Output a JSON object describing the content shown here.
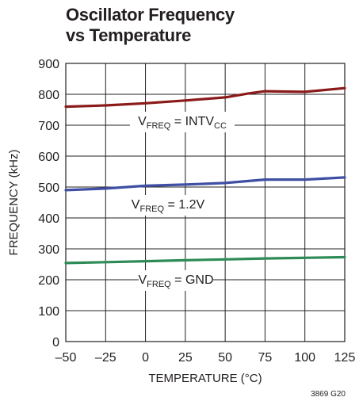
{
  "title_line1": "Oscillator Frequency",
  "title_line2": "vs Temperature",
  "figure_code": "3869 G20",
  "colors": {
    "red": "#8b1a1a",
    "blue": "#3f4fa3",
    "green": "#2e8b57",
    "grid": "#231f20"
  },
  "chart_data": {
    "type": "line",
    "title": "Oscillator Frequency vs Temperature",
    "xlabel": "TEMPERATURE (°C)",
    "ylabel": "FREQUENCY (kHz)",
    "xlim": [
      -50,
      125
    ],
    "ylim": [
      0,
      900
    ],
    "xticks": [
      -50,
      -25,
      0,
      25,
      50,
      75,
      100,
      125
    ],
    "xtick_labels": [
      "–50",
      "–25",
      "0",
      "25",
      "50",
      "75",
      "100",
      "125"
    ],
    "yticks": [
      0,
      100,
      200,
      300,
      400,
      500,
      600,
      700,
      800,
      900
    ],
    "ytick_labels": [
      "0",
      "100",
      "200",
      "300",
      "400",
      "500",
      "600",
      "700",
      "800",
      "900"
    ],
    "grid": true,
    "series": [
      {
        "label_main": "V",
        "label_sub": "FREQ",
        "label_mid": " = INTV",
        "label_sub2": "CC",
        "color": "#8b1a1a",
        "x": [
          -50,
          -25,
          0,
          25,
          50,
          65,
          75,
          100,
          125
        ],
        "y": [
          760,
          764,
          771,
          780,
          790,
          803,
          810,
          808,
          820
        ]
      },
      {
        "label_main": "V",
        "label_sub": "FREQ",
        "label_mid": " = 1.2V",
        "label_sub2": "",
        "color": "#3f4fa3",
        "x": [
          -50,
          -25,
          0,
          25,
          50,
          75,
          100,
          125
        ],
        "y": [
          490,
          495,
          504,
          508,
          513,
          524,
          524,
          531
        ]
      },
      {
        "label_main": "V",
        "label_sub": "FREQ",
        "label_mid": " = GND",
        "label_sub2": "",
        "color": "#2e8b57",
        "x": [
          -50,
          -25,
          0,
          25,
          50,
          75,
          100,
          125
        ],
        "y": [
          254,
          257,
          260,
          263,
          266,
          269,
          271,
          273
        ]
      }
    ]
  }
}
